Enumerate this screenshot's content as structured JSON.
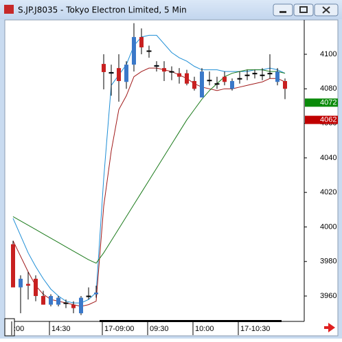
{
  "chart_data": {
    "type": "candlestick",
    "title": "S.JP.J8035 - Tokyo Electron Limited, 5 Min",
    "categories": [
      ":00",
      null,
      null,
      null,
      null,
      "14:30",
      null,
      null,
      null,
      null,
      null,
      null,
      "17-09:00",
      null,
      null,
      null,
      null,
      null,
      "09:30",
      null,
      null,
      null,
      null,
      null,
      "10:00",
      null,
      null,
      null,
      null,
      null,
      "17-10:30",
      null,
      null,
      null,
      null,
      null,
      null
    ],
    "open": [
      3990,
      3965,
      3967,
      3970,
      3960,
      3955,
      3955,
      3956,
      3955,
      3950,
      3960,
      3961,
      4094.4,
      4089,
      4092,
      4084,
      4094,
      4110,
      4102,
      4093,
      4092,
      4090,
      4089,
      4089,
      4084.5,
      4075,
      4085,
      4083,
      4087,
      4080,
      4086,
      4088,
      4089,
      4088,
      4089,
      4084,
      4084.5
    ],
    "high": [
      3992,
      3972,
      3974,
      3972,
      3963,
      3961,
      3960,
      3958,
      3957,
      3960,
      3965,
      3966,
      4100,
      4094,
      4100,
      4096,
      4118,
      4115,
      4105,
      4096,
      4096,
      4093,
      4092,
      4091,
      4087,
      4092,
      4090,
      4087,
      4090,
      4086,
      4090,
      4091,
      4091,
      4092,
      4100,
      4092,
      4086
    ],
    "low": [
      3965,
      3950,
      3958,
      3957,
      3955,
      3954,
      3954,
      3953,
      3950,
      3949,
      3958,
      3959,
      4079.7,
      4076,
      4072.5,
      4080,
      4090,
      4100,
      4098,
      4090,
      4084.5,
      4085,
      4083,
      4082,
      4079,
      4075,
      4082,
      4080,
      4082,
      4079,
      4083,
      4085,
      4086,
      4085,
      4086,
      4082,
      4074
    ],
    "close": [
      3965,
      3970,
      3966,
      3960,
      3955,
      3960,
      3959,
      3956,
      3953,
      3959,
      3960,
      3962,
      4089.7,
      4089.5,
      4084.5,
      4094,
      4110,
      4104,
      4102,
      4093.5,
      4090,
      4090,
      4087,
      4083,
      4080,
      4090,
      4085,
      4083,
      4084,
      4084.5,
      4086,
      4088,
      4089,
      4088,
      4089,
      4090,
      4080
    ],
    "up_color": "#3a78c9",
    "down_color": "#c82020",
    "series": [
      {
        "color": "#1e8ed6",
        "values": [
          4005,
          3995,
          3985,
          3977,
          3970,
          3964,
          3960,
          3957,
          3956,
          3956,
          3958,
          3962,
          4028,
          4082,
          4088,
          4094,
          4105,
          4110,
          4111,
          4111,
          4106,
          4101,
          4098,
          4096,
          4093,
          4091,
          4091,
          4091,
          4090,
          4090,
          4090,
          4090,
          4091,
          4091,
          4092,
          4091,
          4089
        ]
      },
      {
        "color": "#a01818",
        "values": [
          3992,
          3983,
          3974,
          3966,
          3961,
          3958,
          3957,
          3956,
          3955,
          3954,
          3955,
          3957,
          4012,
          4044,
          4068,
          4076,
          4087,
          4090,
          4092,
          4092,
          4091,
          4090,
          4088,
          4086,
          4083,
          4081,
          4080,
          4079,
          4080,
          4080,
          4081,
          4082,
          4083,
          4084,
          4086,
          4086,
          4084
        ]
      },
      {
        "color": "#1a7a1a",
        "values": [
          4006,
          4003.5,
          4001,
          3998.5,
          3996,
          3993.5,
          3991,
          3988.5,
          3986,
          3983.5,
          3981,
          3979,
          3985,
          3992,
          3999,
          4006,
          4013,
          4020,
          4027,
          4034,
          4041,
          4048,
          4055,
          4062,
          4068,
          4074,
          4079,
          4083,
          4087,
          4089,
          4090,
          4091,
          4091,
          4091,
          4090,
          4090,
          4089
        ]
      }
    ],
    "price_labels": [
      {
        "value": 4072,
        "color": "#0a8a0a"
      },
      {
        "value": 4062,
        "color": "#c00000"
      }
    ],
    "ylim": [
      3945.3,
      4119.5
    ],
    "yticks": [
      3960,
      3980,
      4000,
      4020,
      4040,
      4060,
      4080,
      4100
    ]
  }
}
